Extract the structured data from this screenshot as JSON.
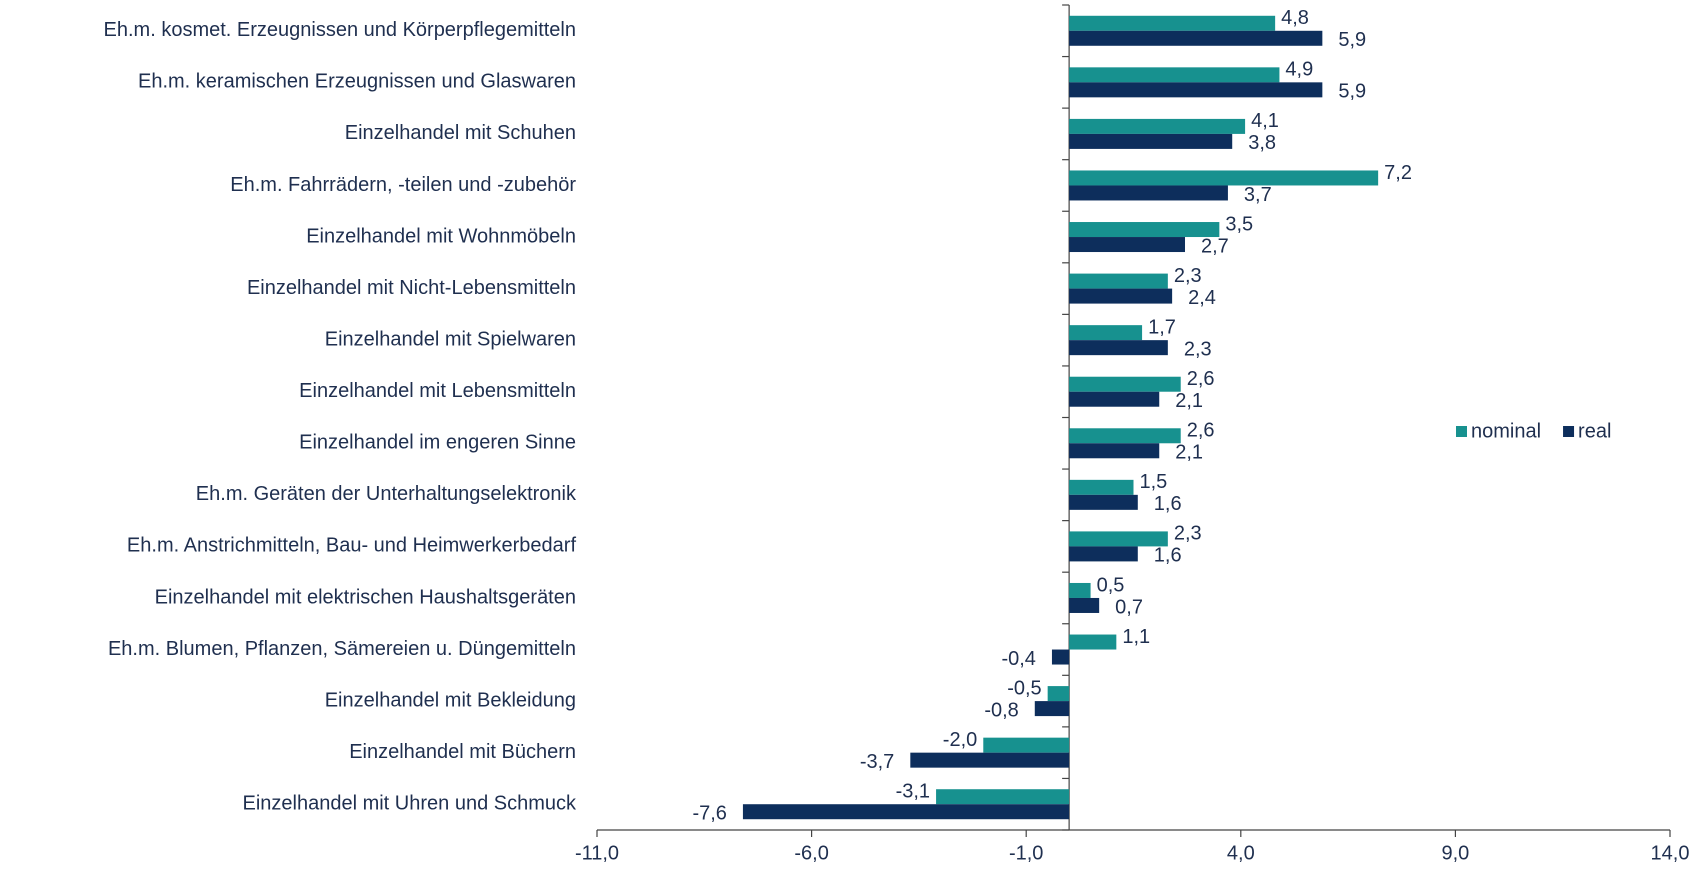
{
  "chart_data": {
    "type": "hbar",
    "categories": [
      "Eh.m. kosmet. Erzeugnissen und Körperpflegemitteln",
      "Eh.m. keramischen Erzeugnissen und Glaswaren",
      "Einzelhandel mit Schuhen",
      "Eh.m. Fahrrädern, -teilen und -zubehör",
      "Einzelhandel mit Wohnmöbeln",
      "Einzelhandel mit Nicht-Lebensmitteln",
      "Einzelhandel mit Spielwaren",
      "Einzelhandel mit Lebensmitteln",
      "Einzelhandel im engeren Sinne",
      "Eh.m. Geräten der Unterhaltungselektronik",
      "Eh.m. Anstrichmitteln, Bau- und Heimwerkerbedarf",
      "Einzelhandel mit elektrischen Haushaltsgeräten",
      "Eh.m. Blumen, Pflanzen, Sämereien u. Düngemitteln",
      "Einzelhandel mit Bekleidung",
      "Einzelhandel mit Büchern",
      "Einzelhandel mit Uhren und Schmuck"
    ],
    "series": [
      {
        "name": "nominal",
        "color": "#17918f",
        "values": [
          4.8,
          4.9,
          4.1,
          7.2,
          3.5,
          2.3,
          1.7,
          2.6,
          2.6,
          1.5,
          2.3,
          0.5,
          1.1,
          -0.5,
          -2.0,
          -3.1
        ],
        "value_labels": [
          "4,8",
          "4,9",
          "4,1",
          "7,2",
          "3,5",
          "2,3",
          "1,7",
          "2,6",
          "2,6",
          "1,5",
          "2,3",
          "0,5",
          "1,1",
          "-0,5",
          "-2,0",
          "-3,1"
        ]
      },
      {
        "name": "real",
        "color": "#0d2e5c",
        "values": [
          5.9,
          5.9,
          3.8,
          3.7,
          2.7,
          2.4,
          2.3,
          2.1,
          2.1,
          1.6,
          1.6,
          0.7,
          -0.4,
          -0.8,
          -3.7,
          -7.6
        ],
        "value_labels": [
          "5,9",
          "5,9",
          "3,8",
          "3,7",
          "2,7",
          "2,4",
          "2,3",
          "2,1",
          "2,1",
          "1,6",
          "1,6",
          "0,7",
          "-0,4",
          "-0,8",
          "-3,7",
          "-7,6"
        ]
      }
    ],
    "xlim": [
      -11,
      14
    ],
    "xticks": [
      {
        "value": -11,
        "label": "-11,0"
      },
      {
        "value": -6,
        "label": "-6,0"
      },
      {
        "value": -1,
        "label": "-1,0"
      },
      {
        "value": 4,
        "label": "4,0"
      },
      {
        "value": 9,
        "label": "9,0"
      },
      {
        "value": 14,
        "label": "14,0"
      }
    ],
    "legend": "right"
  }
}
